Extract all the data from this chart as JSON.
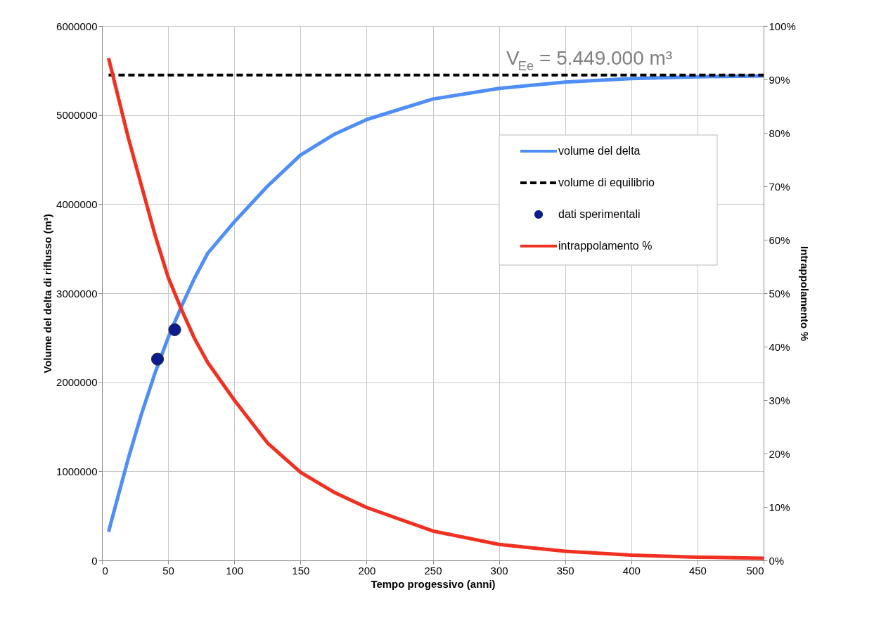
{
  "chart_data": {
    "type": "line",
    "xlabel": "Tempo progessivo (anni)",
    "ylabel": "Volume del delta di riflusso (m³)",
    "y2label": "Intrappolamento %",
    "annotations": [
      "V$_{Ee}$ = 5.449.000 m³"
    ],
    "xlim": [
      0,
      500
    ],
    "xticks": [
      0,
      50,
      100,
      150,
      200,
      250,
      300,
      350,
      400,
      450,
      500
    ],
    "ylim": [
      0,
      6000000
    ],
    "yticks": [
      0,
      1000000,
      2000000,
      3000000,
      4000000,
      5000000,
      6000000
    ],
    "y2lim": [
      0,
      100
    ],
    "y2ticks": [
      {
        "value": 0,
        "label": "0%"
      },
      {
        "value": 10,
        "label": "10%"
      },
      {
        "value": 20,
        "label": "20%"
      },
      {
        "value": 30,
        "label": "30%"
      },
      {
        "value": 40,
        "label": "40%"
      },
      {
        "value": 50,
        "label": "50%"
      },
      {
        "value": 60,
        "label": "60%"
      },
      {
        "value": 70,
        "label": "70%"
      },
      {
        "value": 80,
        "label": "80%"
      },
      {
        "value": 90,
        "label": "90%"
      },
      {
        "value": 100,
        "label": "100%"
      }
    ],
    "grid": true,
    "legend": "top right",
    "series": [
      {
        "name": "volume del delta",
        "color": "#4f8ef7",
        "x": [
          5,
          10,
          20,
          30,
          40,
          50,
          60,
          70,
          80,
          100,
          125,
          150,
          175,
          200,
          250,
          300,
          350,
          400,
          450,
          500
        ],
        "values": [
          320000,
          600000,
          1150000,
          1650000,
          2100000,
          2500000,
          2850000,
          3170000,
          3450000,
          3800000,
          4200000,
          4550000,
          4780000,
          4950000,
          5180000,
          5300000,
          5370000,
          5410000,
          5430000,
          5440000
        ]
      },
      {
        "name": "volume di equilibrio",
        "line_style": "dashed",
        "color": "#000000",
        "x": [
          5,
          500
        ],
        "values": [
          5449000,
          5449000
        ]
      },
      {
        "name": "dati sperimentali",
        "type": "scatter",
        "marker": "circle",
        "color": "#0b1d8c",
        "x": [
          42,
          55
        ],
        "values": [
          2260000,
          2590000
        ]
      },
      {
        "name": "intrappolamento %",
        "axis": "y2",
        "color": "#f03020",
        "x": [
          5,
          10,
          20,
          30,
          40,
          50,
          60,
          70,
          80,
          100,
          125,
          150,
          175,
          200,
          250,
          300,
          350,
          400,
          450,
          500
        ],
        "values": [
          94,
          89,
          79,
          70,
          61,
          53,
          47,
          41.5,
          37,
          30,
          22,
          16.5,
          12.8,
          9.9,
          5.5,
          3,
          1.7,
          1,
          0.6,
          0.4
        ]
      }
    ]
  }
}
